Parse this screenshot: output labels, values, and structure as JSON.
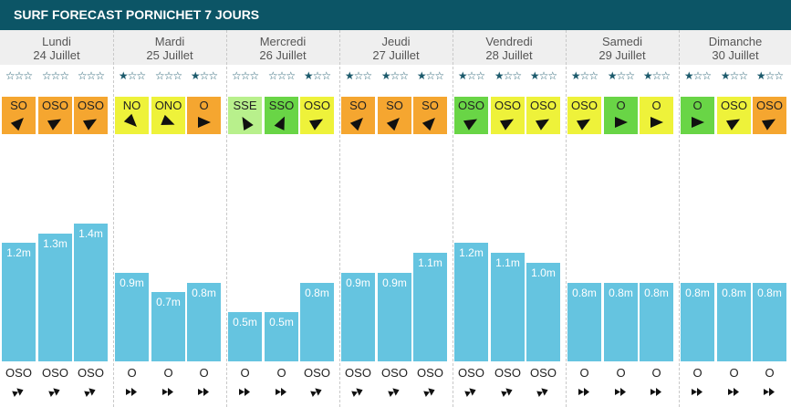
{
  "header": {
    "title": "SURF FORECAST PORNICHET 7 JOURS"
  },
  "colors": {
    "header_bg": "#0c5566",
    "bar": "#65c4e0",
    "wind_orange": "#f5a630",
    "wind_yellow": "#eef23a",
    "wind_green": "#69d546",
    "wind_light_green": "#b8f08c",
    "star": "#1c5a6c"
  },
  "days": [
    {
      "day": "Lundi",
      "date": "24 Juillet",
      "slots": [
        {
          "stars": "☆☆☆",
          "wind_dir": "SO",
          "wind_color": "orange",
          "wind_rot": 45,
          "wave": 1.2,
          "wave_label": "1.2m",
          "swell_dir": "OSO"
        },
        {
          "stars": "☆☆☆",
          "wind_dir": "OSO",
          "wind_color": "orange",
          "wind_rot": 60,
          "wave": 1.3,
          "wave_label": "1.3m",
          "swell_dir": "OSO"
        },
        {
          "stars": "☆☆☆",
          "wind_dir": "OSO",
          "wind_color": "orange",
          "wind_rot": 60,
          "wave": 1.4,
          "wave_label": "1.4m",
          "swell_dir": "OSO"
        }
      ]
    },
    {
      "day": "Mardi",
      "date": "25 Juillet",
      "slots": [
        {
          "stars": "★☆☆",
          "wind_dir": "NO",
          "wind_color": "yellow",
          "wind_rot": 135,
          "wave": 0.9,
          "wave_label": "0.9m",
          "swell_dir": "O"
        },
        {
          "stars": "☆☆☆",
          "wind_dir": "ONO",
          "wind_color": "yellow",
          "wind_rot": 112,
          "wave": 0.7,
          "wave_label": "0.7m",
          "swell_dir": "O"
        },
        {
          "stars": "★☆☆",
          "wind_dir": "O",
          "wind_color": "orange",
          "wind_rot": 90,
          "wave": 0.8,
          "wave_label": "0.8m",
          "swell_dir": "O"
        }
      ]
    },
    {
      "day": "Mercredi",
      "date": "26 Juillet",
      "slots": [
        {
          "stars": "☆☆☆",
          "wind_dir": "SSE",
          "wind_color": "light_green",
          "wind_rot": -30,
          "wave": 0.5,
          "wave_label": "0.5m",
          "swell_dir": "O"
        },
        {
          "stars": "☆☆☆",
          "wind_dir": "SSO",
          "wind_color": "green",
          "wind_rot": 25,
          "wave": 0.5,
          "wave_label": "0.5m",
          "swell_dir": "O"
        },
        {
          "stars": "★☆☆",
          "wind_dir": "OSO",
          "wind_color": "yellow",
          "wind_rot": 60,
          "wave": 0.8,
          "wave_label": "0.8m",
          "swell_dir": "OSO"
        }
      ]
    },
    {
      "day": "Jeudi",
      "date": "27 Juillet",
      "slots": [
        {
          "stars": "★☆☆",
          "wind_dir": "SO",
          "wind_color": "orange",
          "wind_rot": 45,
          "wave": 0.9,
          "wave_label": "0.9m",
          "swell_dir": "OSO"
        },
        {
          "stars": "★☆☆",
          "wind_dir": "SO",
          "wind_color": "orange",
          "wind_rot": 45,
          "wave": 0.9,
          "wave_label": "0.9m",
          "swell_dir": "OSO"
        },
        {
          "stars": "★☆☆",
          "wind_dir": "SO",
          "wind_color": "orange",
          "wind_rot": 45,
          "wave": 1.1,
          "wave_label": "1.1m",
          "swell_dir": "OSO"
        }
      ]
    },
    {
      "day": "Vendredi",
      "date": "28 Juillet",
      "slots": [
        {
          "stars": "★☆☆",
          "wind_dir": "OSO",
          "wind_color": "green",
          "wind_rot": 60,
          "wave": 1.2,
          "wave_label": "1.2m",
          "swell_dir": "OSO"
        },
        {
          "stars": "★☆☆",
          "wind_dir": "OSO",
          "wind_color": "yellow",
          "wind_rot": 60,
          "wave": 1.1,
          "wave_label": "1.1m",
          "swell_dir": "OSO"
        },
        {
          "stars": "★☆☆",
          "wind_dir": "OSO",
          "wind_color": "yellow",
          "wind_rot": 60,
          "wave": 1.0,
          "wave_label": "1.0m",
          "swell_dir": "OSO"
        }
      ]
    },
    {
      "day": "Samedi",
      "date": "29 Juillet",
      "slots": [
        {
          "stars": "★☆☆",
          "wind_dir": "OSO",
          "wind_color": "yellow",
          "wind_rot": 60,
          "wave": 0.8,
          "wave_label": "0.8m",
          "swell_dir": "O"
        },
        {
          "stars": "★☆☆",
          "wind_dir": "O",
          "wind_color": "green",
          "wind_rot": 90,
          "wave": 0.8,
          "wave_label": "0.8m",
          "swell_dir": "O"
        },
        {
          "stars": "★☆☆",
          "wind_dir": "O",
          "wind_color": "yellow",
          "wind_rot": 90,
          "wave": 0.8,
          "wave_label": "0.8m",
          "swell_dir": "O"
        }
      ]
    },
    {
      "day": "Dimanche",
      "date": "30 Juillet",
      "slots": [
        {
          "stars": "★☆☆",
          "wind_dir": "O",
          "wind_color": "green",
          "wind_rot": 90,
          "wave": 0.8,
          "wave_label": "0.8m",
          "swell_dir": "O"
        },
        {
          "stars": "★☆☆",
          "wind_dir": "OSO",
          "wind_color": "yellow",
          "wind_rot": 60,
          "wave": 0.8,
          "wave_label": "0.8m",
          "swell_dir": "O"
        },
        {
          "stars": "★☆☆",
          "wind_dir": "OSO",
          "wind_color": "orange",
          "wind_rot": 60,
          "wave": 0.8,
          "wave_label": "0.8m",
          "swell_dir": "O"
        }
      ]
    }
  ]
}
